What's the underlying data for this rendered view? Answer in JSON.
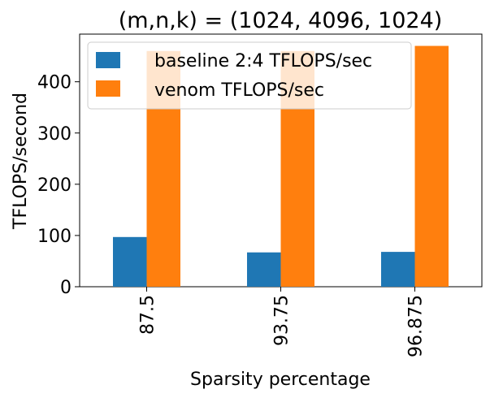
{
  "chart_data": {
    "type": "bar",
    "title": "(m,n,k) = (1024, 4096, 1024)",
    "xlabel": "Sparsity percentage",
    "ylabel": "TFLOPS/second",
    "categories": [
      "87.5",
      "93.75",
      "96.875"
    ],
    "series": [
      {
        "name": "baseline 2:4 TFLOPS/sec",
        "values": [
          97,
          67,
          68
        ],
        "color": "#1f77b4"
      },
      {
        "name": "venom TFLOPS/sec",
        "values": [
          460,
          460,
          470
        ],
        "color": "#ff7f0e"
      }
    ],
    "yticks": [
      0,
      100,
      200,
      300,
      400
    ],
    "ylim": [
      0,
      493
    ],
    "legend_position": "top-left",
    "grid": false
  }
}
